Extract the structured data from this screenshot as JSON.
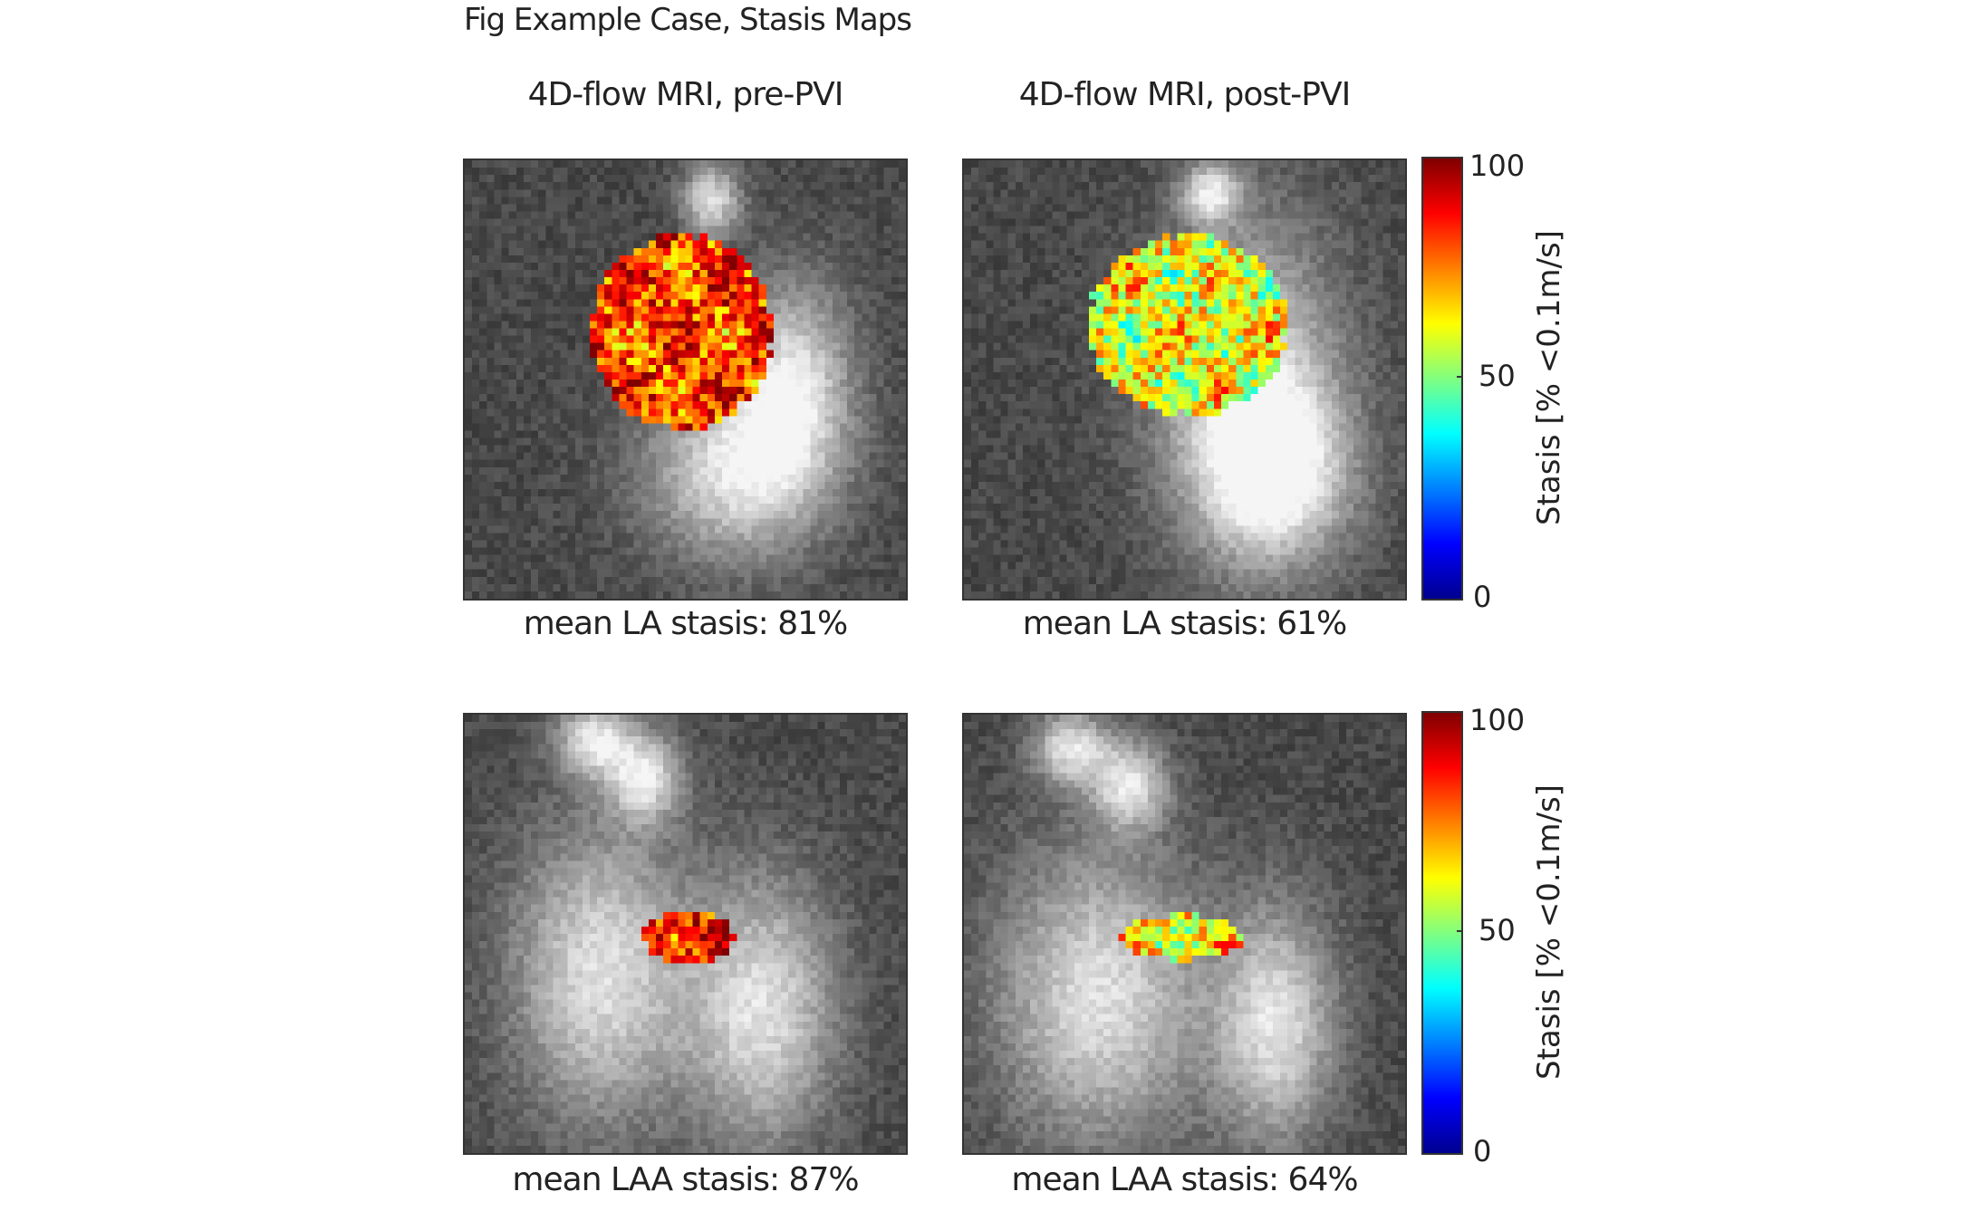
{
  "figure_title": "Fig Example Case, Stasis Maps",
  "columns": [
    {
      "title": "4D-flow MRI, pre-PVI"
    },
    {
      "title": "4D-flow MRI, post-PVI"
    }
  ],
  "panels": [
    {
      "caption": "mean LA stasis: 81%",
      "mean_stasis_percent": 81
    },
    {
      "caption": "mean LA stasis: 61%",
      "mean_stasis_percent": 61
    },
    {
      "caption": "mean LAA stasis: 87%",
      "mean_stasis_percent": 87
    },
    {
      "caption": "mean LAA stasis: 64%",
      "mean_stasis_percent": 64
    }
  ],
  "colorbar": {
    "label": "Stasis [% <0.1m/s]",
    "ticks": [
      "0",
      "50",
      "100"
    ],
    "range": [
      0,
      100
    ],
    "colormap": "jet"
  }
}
